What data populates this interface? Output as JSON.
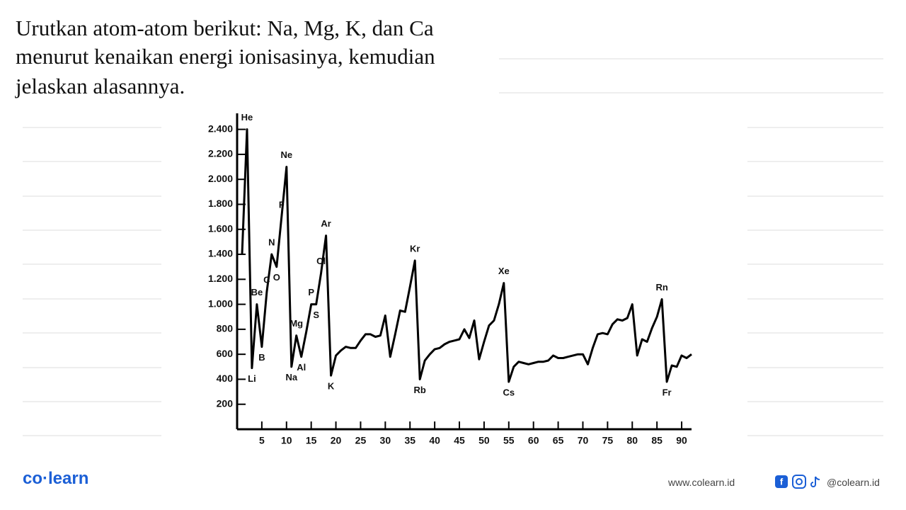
{
  "question": [
    "Urutkan atom-atom berikut: Na, Mg, K, dan Ca",
    "menurut kenaikan energi ionisasinya, kemudian",
    "jelaskan alasannya."
  ],
  "chart_data": {
    "type": "line",
    "color": "#000000",
    "x": [
      1,
      2,
      3,
      4,
      5,
      6,
      7,
      8,
      9,
      10,
      11,
      12,
      13,
      14,
      15,
      16,
      17,
      18,
      19,
      20,
      21,
      22,
      23,
      24,
      25,
      26,
      27,
      28,
      29,
      30,
      31,
      32,
      33,
      34,
      35,
      36,
      37,
      38,
      39,
      40,
      41,
      42,
      43,
      44,
      45,
      46,
      47,
      48,
      49,
      50,
      51,
      52,
      53,
      54,
      55,
      56,
      57,
      58,
      59,
      60,
      61,
      62,
      63,
      64,
      65,
      66,
      67,
      68,
      69,
      70,
      71,
      72,
      73,
      74,
      75,
      76,
      77,
      78,
      79,
      80,
      81,
      82,
      83,
      84,
      85,
      86,
      87,
      88,
      89,
      90,
      91,
      92
    ],
    "values": [
      1400,
      2400,
      490,
      1000,
      660,
      1100,
      1400,
      1300,
      1700,
      2100,
      500,
      750,
      580,
      780,
      1000,
      1000,
      1250,
      1550,
      430,
      590,
      630,
      660,
      650,
      650,
      710,
      760,
      760,
      740,
      750,
      910,
      580,
      760,
      950,
      940,
      1140,
      1350,
      400,
      550,
      600,
      640,
      650,
      680,
      700,
      710,
      720,
      800,
      730,
      870,
      560,
      700,
      830,
      870,
      1000,
      1170,
      380,
      500,
      540,
      530,
      520,
      530,
      540,
      540,
      550,
      590,
      570,
      570,
      580,
      590,
      600,
      600,
      520,
      650,
      760,
      770,
      760,
      840,
      880,
      870,
      890,
      1000,
      590,
      720,
      700,
      810,
      900,
      1040,
      380,
      510,
      500,
      590,
      570,
      600
    ],
    "xlim": [
      0,
      92
    ],
    "ylim": [
      0,
      2500
    ],
    "xticks": [
      5,
      10,
      15,
      20,
      25,
      30,
      35,
      40,
      45,
      50,
      55,
      60,
      65,
      70,
      75,
      80,
      85,
      90
    ],
    "yticks": [
      200,
      400,
      600,
      800,
      {
        "value": 1000,
        "label": "1.000"
      },
      {
        "value": 1200,
        "label": "1.200"
      },
      {
        "value": 1400,
        "label": "1.400"
      },
      {
        "value": 1600,
        "label": "1.600"
      },
      {
        "value": 1800,
        "label": "1.800"
      },
      {
        "value": 2000,
        "label": "2.000"
      },
      {
        "value": 2200,
        "label": "2.200"
      },
      {
        "value": 2400,
        "label": "2.400"
      }
    ],
    "annotations": [
      {
        "text": "He",
        "x": 2,
        "position": "above"
      },
      {
        "text": "Li",
        "x": 3,
        "position": "below"
      },
      {
        "text": "Be",
        "x": 4,
        "position": "above"
      },
      {
        "text": "B",
        "x": 5,
        "position": "below"
      },
      {
        "text": "C",
        "x": 6,
        "position": "above"
      },
      {
        "text": "N",
        "x": 7,
        "position": "above"
      },
      {
        "text": "O",
        "x": 8,
        "position": "below"
      },
      {
        "text": "F",
        "x": 9,
        "position": "above"
      },
      {
        "text": "Ne",
        "x": 10,
        "position": "above"
      },
      {
        "text": "Na",
        "x": 11,
        "position": "below"
      },
      {
        "text": "Mg",
        "x": 12,
        "position": "above"
      },
      {
        "text": "Al",
        "x": 13,
        "position": "below"
      },
      {
        "text": "P",
        "x": 15,
        "position": "above"
      },
      {
        "text": "S",
        "x": 16,
        "position": "below"
      },
      {
        "text": "Cl",
        "x": 17,
        "position": "above"
      },
      {
        "text": "Ar",
        "x": 18,
        "position": "above"
      },
      {
        "text": "K",
        "x": 19,
        "position": "below"
      },
      {
        "text": "Kr",
        "x": 36,
        "position": "above"
      },
      {
        "text": "Rb",
        "x": 37,
        "position": "below"
      },
      {
        "text": "Xe",
        "x": 54,
        "position": "above"
      },
      {
        "text": "Cs",
        "x": 55,
        "position": "below"
      },
      {
        "text": "Rn",
        "x": 86,
        "position": "above"
      },
      {
        "text": "Fr",
        "x": 87,
        "position": "below"
      }
    ]
  },
  "footer": {
    "logo": "co·learn",
    "website": "www.colearn.id",
    "social": "@colearn.id"
  }
}
